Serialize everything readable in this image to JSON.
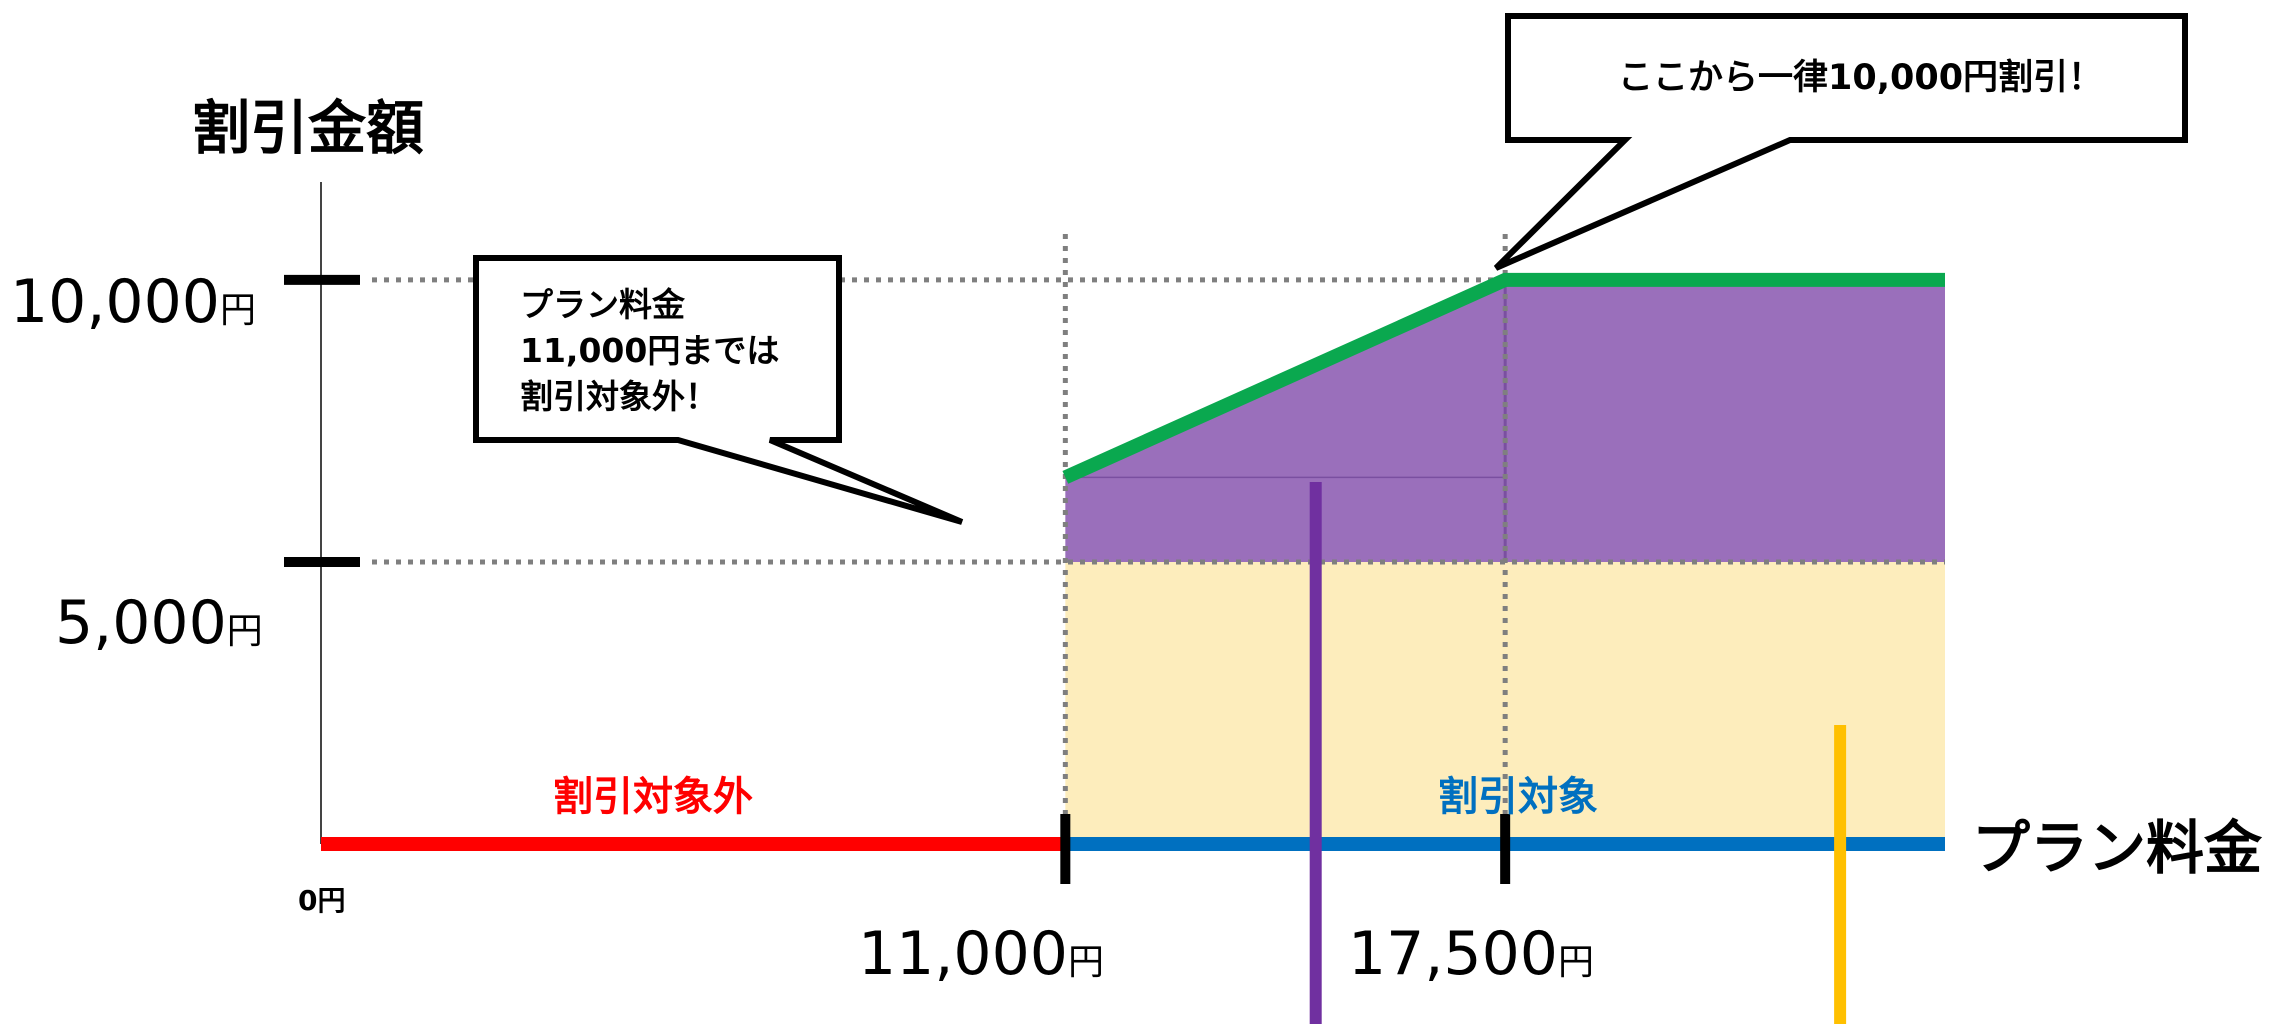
{
  "chart_data": {
    "type": "area",
    "title": "",
    "ylabel": "割引金額",
    "xlabel": "プラン料金",
    "origin_label": "0円",
    "x_tick_labels": [
      {
        "value": 11000,
        "label": "11,000",
        "unit": "円"
      },
      {
        "value": 17500,
        "label": "17,500",
        "unit": "円"
      }
    ],
    "y_tick_labels": [
      {
        "value": 10000,
        "label": "10,000",
        "unit": "円"
      },
      {
        "value": 5000,
        "label": "5,000",
        "unit": "円"
      }
    ],
    "x_range": [
      0,
      24000
    ],
    "y_range": [
      0,
      11700
    ],
    "discount_line": {
      "color": "#0aa84f",
      "points": [
        [
          11000,
          6500
        ],
        [
          17500,
          10000
        ],
        [
          24000,
          10000
        ]
      ]
    },
    "regions": [
      {
        "name": "割引対象外",
        "x": [
          0,
          11000
        ],
        "color": "#ff0000"
      },
      {
        "name": "割引対象",
        "x": [
          11000,
          24000
        ],
        "color": "#0070c0"
      }
    ],
    "band_colors": {
      "upper": "#9a6fbb",
      "lower": "#fdedbc"
    },
    "markers": [
      {
        "x": 14700,
        "color": "#7030a0"
      },
      {
        "x": 22450,
        "color": "#ffc000"
      }
    ],
    "annotations": [
      {
        "lines": [
          "プラン料金",
          "11,000円までは",
          "割引対象外！"
        ],
        "target": [
          11000,
          6500
        ]
      },
      {
        "lines": [
          "ここから一律10,000円割引！"
        ],
        "target": [
          17500,
          10000
        ]
      }
    ]
  }
}
